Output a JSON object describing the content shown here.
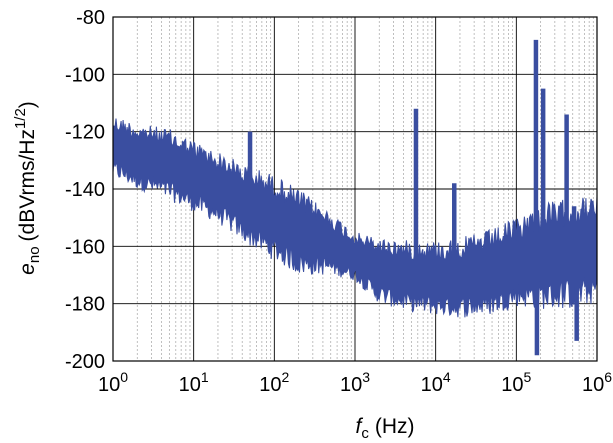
{
  "chart_data": {
    "type": "line",
    "title": "",
    "xlabel": {
      "symbol": "f",
      "subscript": "c",
      "unit": "(Hz)"
    },
    "ylabel": {
      "symbol": "e",
      "subscript": "no",
      "unit_main": "(dBVrms/Hz",
      "unit_sup": "1/2",
      "unit_end": ")"
    },
    "x_scale": "log",
    "xlim": [
      1,
      1000000
    ],
    "ylim": [
      -200,
      -80
    ],
    "x_ticks": [
      {
        "base": "10",
        "exp": "0",
        "value": 1
      },
      {
        "base": "10",
        "exp": "1",
        "value": 10
      },
      {
        "base": "10",
        "exp": "2",
        "value": 100
      },
      {
        "base": "10",
        "exp": "3",
        "value": 1000
      },
      {
        "base": "10",
        "exp": "4",
        "value": 10000
      },
      {
        "base": "10",
        "exp": "5",
        "value": 100000
      },
      {
        "base": "10",
        "exp": "6",
        "value": 1000000
      }
    ],
    "y_ticks": [
      "-80",
      "-100",
      "-120",
      "-140",
      "-160",
      "-180",
      "-200"
    ],
    "grid": true,
    "minor_grid_x": true,
    "legend": "none",
    "series_color": "#3a4ea0",
    "series": [
      {
        "x": [
          1,
          2,
          5,
          10,
          20,
          50,
          100,
          200,
          500,
          1000,
          2000,
          5000,
          10000,
          20000,
          50000,
          100000,
          200000,
          500000,
          1000000
        ],
        "y_upper": [
          -114,
          -117,
          -119,
          -123,
          -127,
          -132,
          -135,
          -140,
          -148,
          -155,
          -157,
          -158,
          -158,
          -157,
          -154,
          -150,
          -145,
          -143,
          -142
        ],
        "y_lower": [
          -136,
          -140,
          -144,
          -148,
          -152,
          -160,
          -165,
          -170,
          -170,
          -172,
          -180,
          -183,
          -184,
          -185,
          -184,
          -181,
          -182,
          -182,
          -180
        ],
        "spikes": [
          {
            "x": 50,
            "y": -120
          },
          {
            "x": 5700,
            "y": -112
          },
          {
            "x": 17000,
            "y": -138
          },
          {
            "x": 175000,
            "y": -88
          },
          {
            "x": 180000,
            "y": -198
          },
          {
            "x": 215000,
            "y": -105
          },
          {
            "x": 420000,
            "y": -114
          },
          {
            "x": 520000,
            "y": -146
          },
          {
            "x": 560000,
            "y": -193
          }
        ]
      }
    ]
  }
}
